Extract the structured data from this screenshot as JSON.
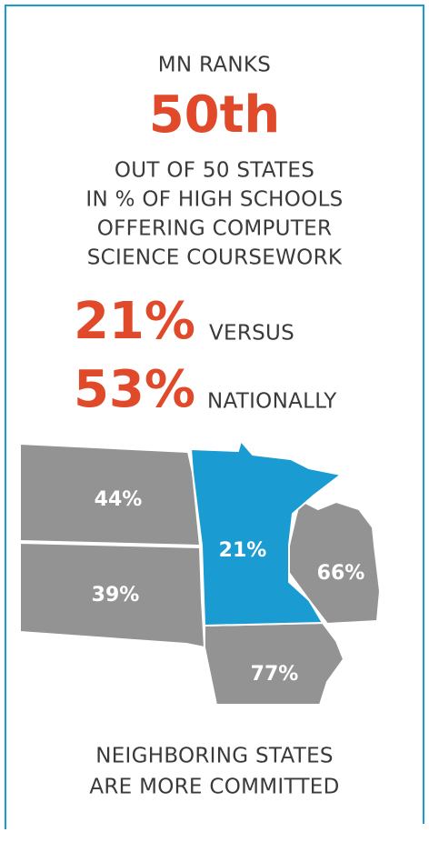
{
  "header": {
    "intro": "MN RANKS",
    "rank": "50th",
    "lines": [
      "OUT OF 50 STATES",
      "IN % OF HIGH SCHOOLS",
      "OFFERING COMPUTER",
      "SCIENCE COURSEWORK"
    ]
  },
  "comparison": {
    "mn": "21%",
    "mn_word": "VERSUS",
    "national": "53%",
    "national_word": "NATIONALLY"
  },
  "map": {
    "states": [
      {
        "label": "44%"
      },
      {
        "label": "39%"
      },
      {
        "label": "21%"
      },
      {
        "label": "66%"
      },
      {
        "label": "77%"
      }
    ]
  },
  "footer": {
    "lines": [
      "NEIGHBORING STATES",
      "ARE MORE COMMITTED"
    ]
  }
}
